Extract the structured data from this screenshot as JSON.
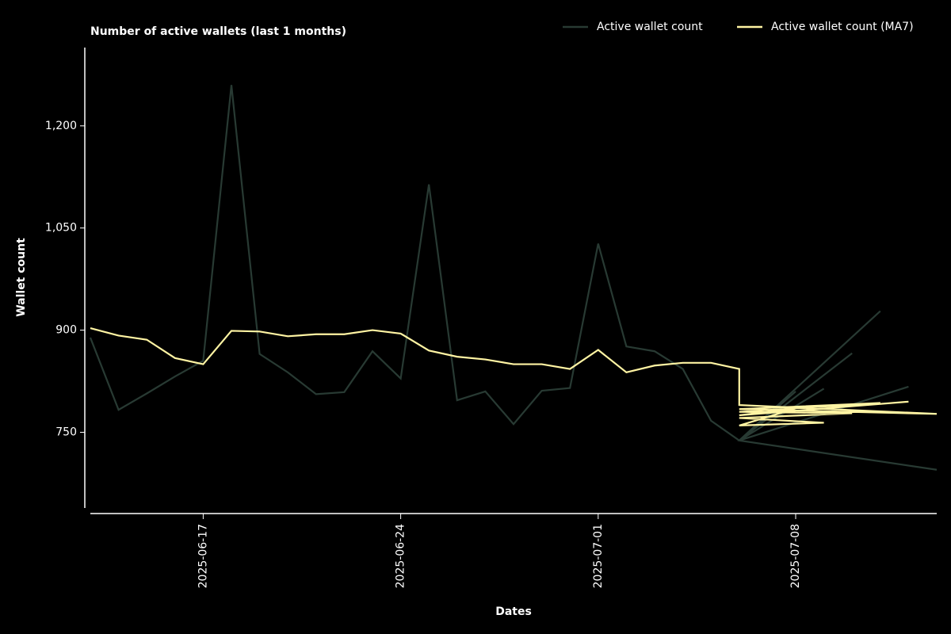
{
  "chart_data": {
    "type": "line",
    "title": "Number of active wallets (last 1 months)",
    "x_label": "Dates",
    "y_label": "Wallet count",
    "x": [
      "2025-06-13",
      "2025-06-14",
      "2025-06-15",
      "2025-06-16",
      "2025-06-17",
      "2025-06-18",
      "2025-06-19",
      "2025-06-20",
      "2025-06-21",
      "2025-06-22",
      "2025-06-23",
      "2025-06-24",
      "2025-06-25",
      "2025-06-26",
      "2025-06-27",
      "2025-06-28",
      "2025-06-29",
      "2025-06-30",
      "2025-07-01",
      "2025-07-02",
      "2025-07-03",
      "2025-07-04",
      "2025-07-05",
      "2025-07-06",
      "2025-07-06",
      "2025-07-13",
      "2025-07-06",
      "2025-07-11",
      "2025-07-06",
      "2025-07-10",
      "2025-07-06",
      "2025-07-09",
      "2025-07-06",
      "2025-07-08",
      "2025-07-06",
      "2025-07-12"
    ],
    "series": [
      {
        "name": "Active wallet count",
        "color": "#283a33",
        "values": [
          889,
          783,
          807,
          832,
          855,
          1260,
          865,
          838,
          806,
          809,
          869,
          829,
          1114,
          797,
          810,
          762,
          811,
          815,
          1027,
          876,
          869,
          843,
          767,
          738,
          738,
          695,
          738,
          928,
          738,
          866,
          738,
          814,
          738,
          810,
          738,
          817
        ]
      },
      {
        "name": "Active wallet count (MA7)",
        "color": "#fff4a3",
        "values": [
          903,
          892,
          886,
          859,
          850,
          899,
          898,
          891,
          894,
          894,
          900,
          895,
          870,
          861,
          857,
          850,
          850,
          843,
          871,
          838,
          848,
          852,
          852,
          843,
          790,
          777,
          784,
          793,
          780,
          778,
          771,
          764,
          760,
          785,
          775,
          795
        ]
      }
    ],
    "xlim": [
      "2025-06-13",
      "2025-07-13"
    ],
    "xticks": [
      "2025-06-17",
      "2025-06-24",
      "2025-07-01",
      "2025-07-08"
    ],
    "ylim": [
      640,
      1315
    ],
    "yticks": [
      750,
      900,
      {
        "value": 1050,
        "label": "1,050"
      },
      {
        "value": 1200,
        "label": "1,200"
      }
    ],
    "legend": "upper right"
  }
}
